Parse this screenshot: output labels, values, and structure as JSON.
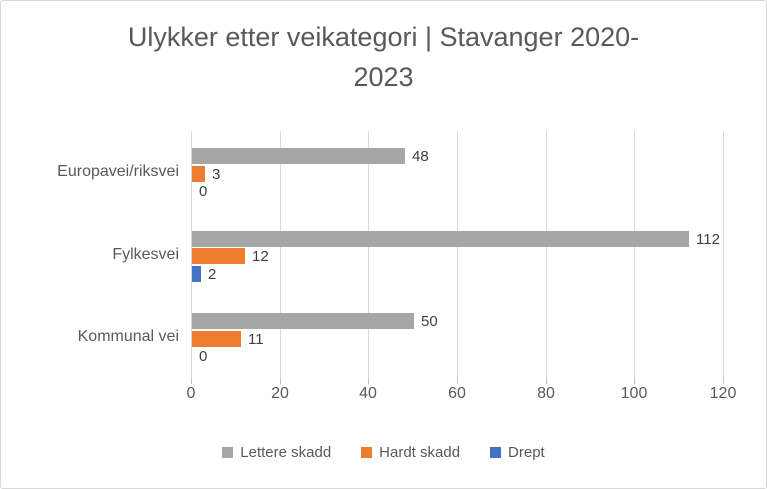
{
  "frame": {
    "background": "#ffffff",
    "border_color": "#d9d9d9"
  },
  "chart_data": {
    "type": "bar",
    "orientation": "horizontal",
    "title": "Ulykker etter veikategori | Stavanger 2020-2023",
    "title_lines": [
      "Ulykker etter veikategori | Stavanger 2020-",
      "2023"
    ],
    "categories": [
      "Europavei/riksvei",
      "Fylkesvei",
      "Kommunal vei"
    ],
    "series": [
      {
        "name": "Lettere skadd",
        "color": "#a6a6a6",
        "values": [
          48,
          112,
          50
        ]
      },
      {
        "name": "Hardt skadd",
        "color": "#ed7d31",
        "values": [
          3,
          12,
          11
        ]
      },
      {
        "name": "Drept",
        "color": "#4472c4",
        "values": [
          0,
          2,
          0
        ]
      }
    ],
    "x_axis": {
      "min": 0,
      "max": 120,
      "tick_interval": 20,
      "tick_labels": [
        "0",
        "20",
        "40",
        "60",
        "80",
        "100",
        "120"
      ]
    },
    "grid": true,
    "legend_position": "bottom",
    "colors": {
      "title_text": "#595959",
      "axis_text": "#595959",
      "data_label_text": "#404040",
      "gridline": "#d9d9d9"
    }
  }
}
